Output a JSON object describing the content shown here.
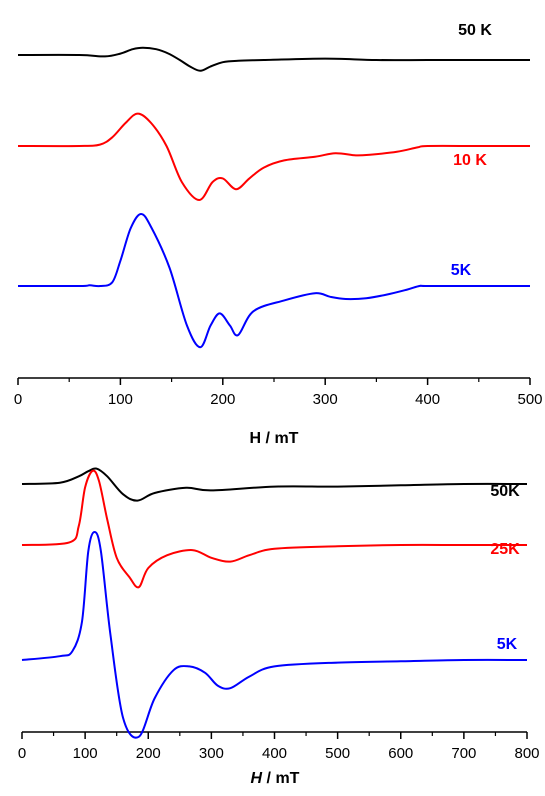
{
  "chart_data": [
    {
      "type": "line",
      "xlabel": "H / mT",
      "xlim": [
        0,
        500
      ],
      "xticks": [
        0,
        100,
        200,
        300,
        400,
        500
      ],
      "y_units": "arbitrary (EPR derivative signal, offset traces)",
      "series": [
        {
          "name": "50 K",
          "color": "#000000",
          "x": [
            0,
            60,
            85,
            100,
            112,
            122,
            135,
            147,
            158,
            168,
            178,
            188,
            200,
            215,
            240,
            300,
            350,
            400,
            450,
            500
          ],
          "y": [
            0.0,
            0.0,
            -0.02,
            0.02,
            0.08,
            0.1,
            0.08,
            0.02,
            -0.07,
            -0.16,
            -0.22,
            -0.16,
            -0.1,
            -0.08,
            -0.07,
            -0.05,
            -0.07,
            -0.07,
            -0.07,
            -0.07
          ]
        },
        {
          "name": "10 K",
          "color": "#ff0000",
          "x": [
            0,
            60,
            80,
            92,
            105,
            117,
            130,
            145,
            160,
            177,
            190,
            200,
            213,
            226,
            240,
            260,
            290,
            310,
            330,
            345,
            370,
            390,
            400,
            450,
            500
          ],
          "y": [
            0.0,
            0.0,
            0.02,
            0.12,
            0.32,
            0.45,
            0.32,
            0.0,
            -0.5,
            -0.75,
            -0.5,
            -0.45,
            -0.6,
            -0.45,
            -0.3,
            -0.2,
            -0.15,
            -0.1,
            -0.13,
            -0.12,
            -0.08,
            -0.02,
            0.0,
            0.0,
            0.0
          ]
        },
        {
          "name": "5K",
          "color": "#0000ff",
          "x": [
            0,
            60,
            70,
            80,
            92,
            100,
            110,
            120,
            130,
            148,
            165,
            178,
            188,
            197,
            207,
            215,
            230,
            260,
            290,
            305,
            320,
            340,
            360,
            380,
            392,
            400,
            450,
            500
          ],
          "y": [
            0.0,
            0.0,
            0.01,
            0.0,
            0.05,
            0.35,
            0.8,
            1.0,
            0.82,
            0.25,
            -0.55,
            -0.85,
            -0.55,
            -0.38,
            -0.55,
            -0.68,
            -0.35,
            -0.2,
            -0.1,
            -0.15,
            -0.18,
            -0.17,
            -0.12,
            -0.05,
            0.0,
            0.0,
            0.0,
            0.0
          ]
        }
      ],
      "labels": [
        "50 K",
        "10 K",
        "5K"
      ]
    },
    {
      "type": "line",
      "xlabel_italic": "H",
      "xlabel_rest": " / mT",
      "xlim": [
        0,
        800
      ],
      "xticks": [
        0,
        100,
        200,
        300,
        400,
        500,
        600,
        700,
        800
      ],
      "y_units": "arbitrary (EPR derivative signal, offset traces)",
      "series": [
        {
          "name": "50K",
          "color": "#000000",
          "x": [
            0,
            60,
            90,
            105,
            118,
            135,
            160,
            183,
            210,
            260,
            300,
            400,
            500,
            600,
            700,
            800
          ],
          "y": [
            0.0,
            0.01,
            0.06,
            0.1,
            0.12,
            0.06,
            -0.08,
            -0.13,
            -0.07,
            -0.03,
            -0.05,
            -0.02,
            -0.02,
            -0.01,
            0.0,
            0.0
          ]
        },
        {
          "name": "25K",
          "color": "#ff0000",
          "x": [
            0,
            75,
            90,
            100,
            112,
            122,
            135,
            150,
            170,
            185,
            200,
            230,
            270,
            300,
            330,
            360,
            400,
            500,
            600,
            700,
            800
          ],
          "y": [
            0.0,
            0.02,
            0.15,
            0.45,
            0.58,
            0.5,
            0.2,
            -0.1,
            -0.25,
            -0.33,
            -0.18,
            -0.08,
            -0.04,
            -0.1,
            -0.13,
            -0.08,
            -0.03,
            -0.01,
            0.0,
            0.0,
            0.0
          ]
        },
        {
          "name": "5K",
          "color": "#0000ff",
          "x": [
            0,
            60,
            80,
            95,
            105,
            115,
            125,
            140,
            160,
            185,
            210,
            240,
            265,
            290,
            310,
            330,
            360,
            400,
            500,
            600,
            700,
            800
          ],
          "y": [
            0.0,
            0.03,
            0.07,
            0.3,
            0.85,
            1.0,
            0.85,
            0.2,
            -0.45,
            -0.6,
            -0.3,
            -0.08,
            -0.05,
            -0.1,
            -0.2,
            -0.22,
            -0.13,
            -0.05,
            -0.02,
            -0.01,
            0.0,
            0.0
          ]
        }
      ],
      "labels": [
        "50K",
        "25K",
        "5K"
      ]
    }
  ]
}
